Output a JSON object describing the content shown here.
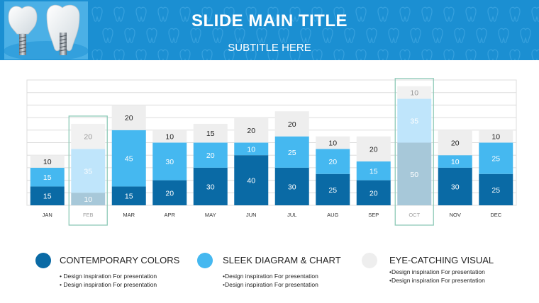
{
  "header": {
    "title": "SLIDE MAIN TITLE",
    "subtitle": "SUBTITLE HERE"
  },
  "colors": {
    "header_bg": "#1b8fd2",
    "dark_blue": "#0a6aa5",
    "light_blue": "#45b8f0",
    "light_gray": "#eeeeee",
    "highlight_border": "#8ecab8"
  },
  "chart_data": {
    "type": "bar",
    "stacked": true,
    "categories": [
      "JAN",
      "FEB",
      "MAR",
      "APR",
      "MAY",
      "JUN",
      "JUL",
      "AUG",
      "SEP",
      "OCT",
      "NOV",
      "DEC"
    ],
    "series": [
      {
        "values": [
          15,
          10,
          15,
          20,
          30,
          40,
          30,
          25,
          20,
          50,
          30,
          25
        ]
      },
      {
        "values": [
          15,
          35,
          45,
          30,
          20,
          10,
          25,
          20,
          15,
          35,
          10,
          25
        ]
      },
      {
        "values": [
          10,
          20,
          20,
          10,
          15,
          20,
          20,
          10,
          20,
          10,
          20,
          10
        ]
      }
    ],
    "highlighted": [
      "FEB",
      "OCT"
    ],
    "grid": true,
    "ylim": [
      0,
      100
    ]
  },
  "legend": [
    {
      "label": "CONTEMPORARY COLORS",
      "lines": [
        "• Design inspiration For presentation",
        "• Design inspiration For presentation"
      ]
    },
    {
      "label": "SLEEK DIAGRAM & CHART",
      "lines": [
        "•Design inspiration For presentation",
        "•Design inspiration For presentation"
      ]
    },
    {
      "label": "EYE-CATCHING VISUAL",
      "lines": [
        "•Design inspiration For presentation",
        "•Design inspiration For presentation"
      ]
    }
  ]
}
